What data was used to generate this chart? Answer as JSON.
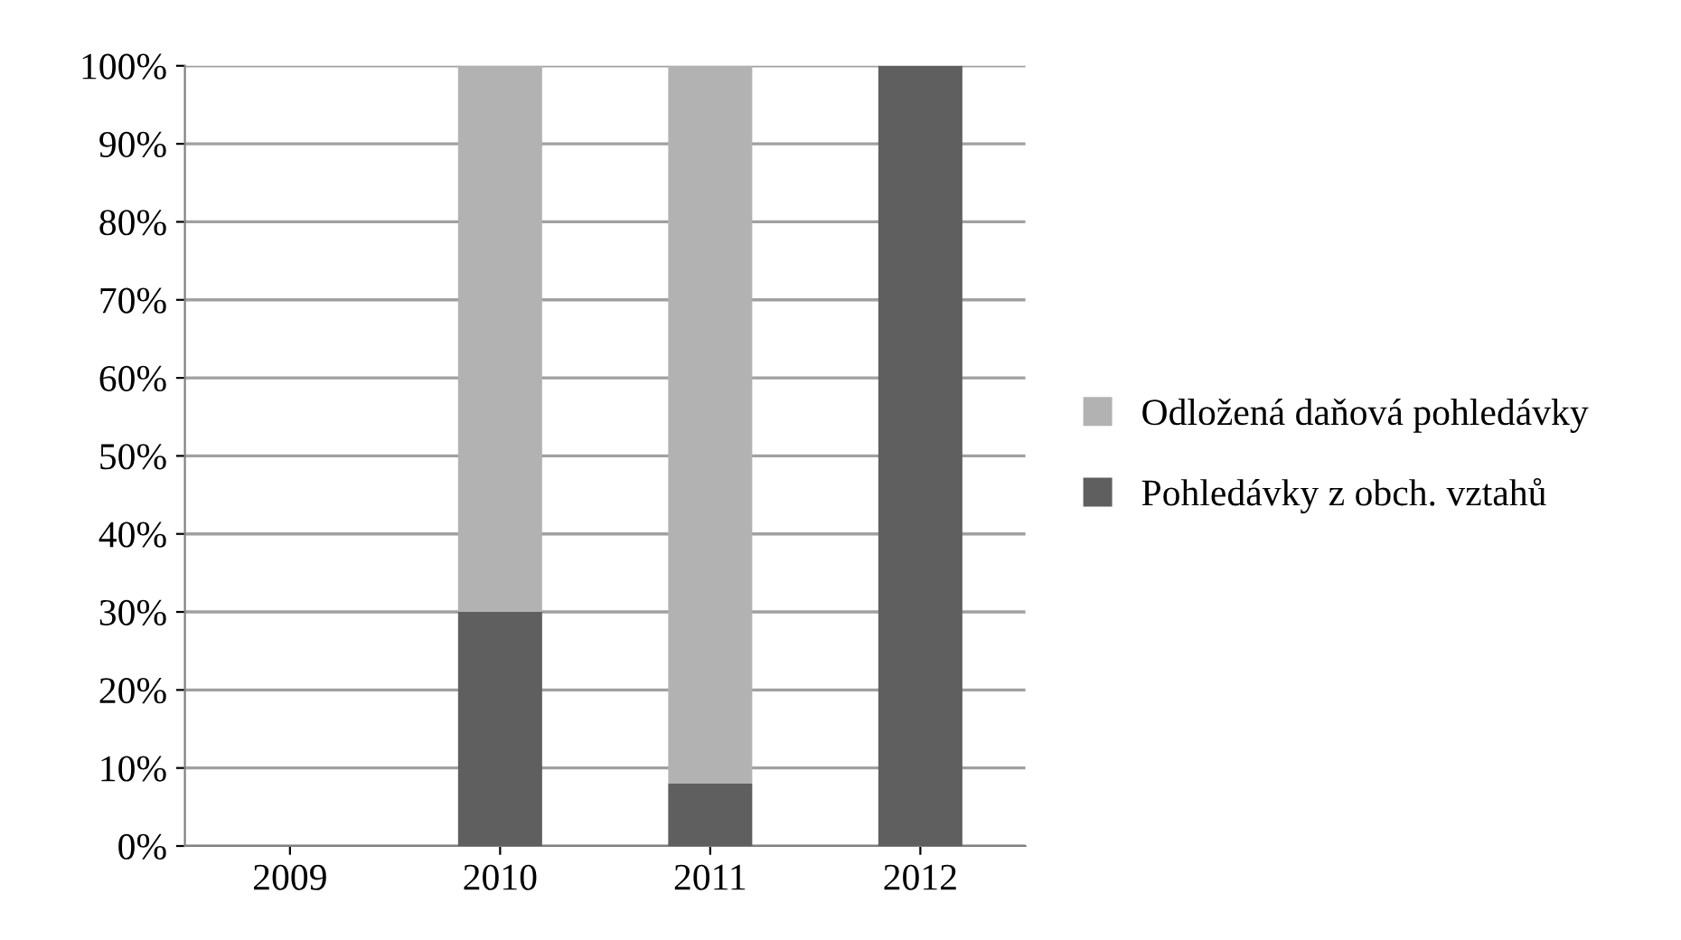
{
  "chart_data": {
    "type": "bar",
    "stacked": true,
    "categories": [
      "2009",
      "2010",
      "2011",
      "2012"
    ],
    "series": [
      {
        "name": "Pohledávky z obch. vztahů",
        "color": "#5f5f5f",
        "values": [
          0,
          30,
          8,
          100
        ]
      },
      {
        "name": "Odložená daňová pohledávky",
        "color": "#b2b2b2",
        "values": [
          0,
          70,
          92,
          0
        ]
      }
    ],
    "ylim": [
      0,
      100
    ],
    "yticks": [
      {
        "value": 0,
        "label": "0%"
      },
      {
        "value": 10,
        "label": "10%"
      },
      {
        "value": 20,
        "label": "20%"
      },
      {
        "value": 30,
        "label": "30%"
      },
      {
        "value": 40,
        "label": "40%"
      },
      {
        "value": 50,
        "label": "50%"
      },
      {
        "value": 60,
        "label": "60%"
      },
      {
        "value": 70,
        "label": "70%"
      },
      {
        "value": 80,
        "label": "80%"
      },
      {
        "value": 90,
        "label": "90%"
      },
      {
        "value": 100,
        "label": "100%"
      }
    ],
    "grid": "y",
    "legend": "right"
  }
}
